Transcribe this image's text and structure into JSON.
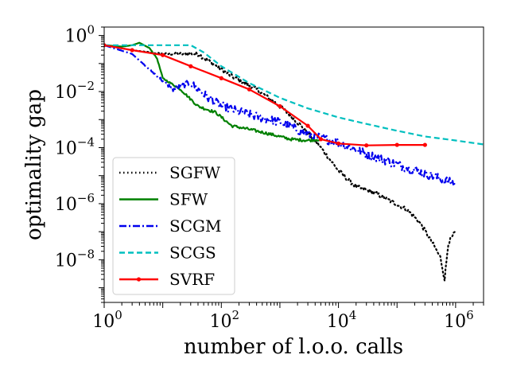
{
  "chart_data": {
    "type": "line",
    "title": "",
    "xlabel": "number of l.o.o. calls",
    "ylabel": "optimality gap",
    "xscale": "log",
    "yscale": "log",
    "xlim": [
      1,
      3000000
    ],
    "ylim": [
      3e-10,
      2
    ],
    "xticks": [
      {
        "value": 1,
        "base": "10",
        "exp": "0"
      },
      {
        "value": 100,
        "base": "10",
        "exp": "2"
      },
      {
        "value": 10000,
        "base": "10",
        "exp": "4"
      },
      {
        "value": 1000000,
        "base": "10",
        "exp": "6"
      }
    ],
    "yticks": [
      {
        "value": 1,
        "base": "10",
        "exp": "0"
      },
      {
        "value": 0.01,
        "base": "10",
        "exp": "−2"
      },
      {
        "value": 0.0001,
        "base": "10",
        "exp": "−4"
      },
      {
        "value": 1e-06,
        "base": "10",
        "exp": "−6"
      },
      {
        "value": 1e-08,
        "base": "10",
        "exp": "−8"
      }
    ],
    "legend_position": "lower-left",
    "series": [
      {
        "name": "SGFW",
        "color": "#000000",
        "style": "dotted",
        "noise": 0.08,
        "points": [
          [
            1,
            0.45
          ],
          [
            3,
            0.3
          ],
          [
            10,
            0.22
          ],
          [
            40,
            0.22
          ],
          [
            70,
            0.1
          ],
          [
            150,
            0.035
          ],
          [
            400,
            0.012
          ],
          [
            1000,
            0.003
          ],
          [
            2000,
            0.0008
          ],
          [
            4000,
            0.00018
          ],
          [
            6000,
            6e-05
          ],
          [
            10000,
            1.5e-05
          ],
          [
            20000,
            4e-06
          ],
          [
            40000,
            2.5e-06
          ],
          [
            80000,
            1.2e-06
          ],
          [
            150000,
            6e-07
          ],
          [
            250000,
            2e-07
          ],
          [
            400000,
            4e-08
          ],
          [
            550000,
            1.2e-08
          ],
          [
            650000,
            2e-09
          ],
          [
            750000,
            4e-08
          ],
          [
            1000000,
            1e-07
          ]
        ]
      },
      {
        "name": "SFW",
        "color": "#008000",
        "style": "solid",
        "noise": 0.05,
        "points": [
          [
            1,
            0.45
          ],
          [
            2,
            0.4
          ],
          [
            3,
            0.45
          ],
          [
            4,
            0.55
          ],
          [
            6,
            0.35
          ],
          [
            8,
            0.15
          ],
          [
            10,
            0.03
          ],
          [
            20,
            0.012
          ],
          [
            40,
            0.003
          ],
          [
            80,
            0.0018
          ],
          [
            150,
            0.0006
          ],
          [
            300,
            0.00045
          ],
          [
            700,
            0.0003
          ],
          [
            1500,
            0.0002
          ],
          [
            3000,
            0.00018
          ],
          [
            5000,
            0.0002
          ]
        ]
      },
      {
        "name": "SCGM",
        "color": "#0000ee",
        "style": "dashdot",
        "noise": 0.16,
        "points": [
          [
            1,
            0.45
          ],
          [
            3,
            0.22
          ],
          [
            6,
            0.06
          ],
          [
            15,
            0.012
          ],
          [
            30,
            0.02
          ],
          [
            60,
            0.006
          ],
          [
            100,
            0.003
          ],
          [
            300,
            0.0015
          ],
          [
            1000,
            0.0008
          ],
          [
            3000,
            0.0003
          ],
          [
            10000,
            0.00015
          ],
          [
            30000,
            6e-05
          ],
          [
            100000,
            2.5e-05
          ],
          [
            300000,
            1.2e-05
          ],
          [
            1000000,
            5e-06
          ]
        ]
      },
      {
        "name": "SCGS",
        "color": "#00bfbf",
        "style": "dashed",
        "noise": 0.0,
        "points": [
          [
            1,
            0.45
          ],
          [
            3,
            0.45
          ],
          [
            10,
            0.45
          ],
          [
            30,
            0.45
          ],
          [
            50,
            0.25
          ],
          [
            100,
            0.08
          ],
          [
            300,
            0.02
          ],
          [
            1000,
            0.006
          ],
          [
            3000,
            0.0025
          ],
          [
            10000,
            0.0012
          ],
          [
            30000,
            0.0007
          ],
          [
            100000,
            0.0004
          ],
          [
            300000,
            0.00025
          ],
          [
            1000000,
            0.00018
          ],
          [
            3000000,
            0.00013
          ]
        ]
      },
      {
        "name": "SVRF",
        "color": "#ff0000",
        "style": "solid-marker",
        "noise": 0.0,
        "points": [
          [
            1,
            0.45
          ],
          [
            3,
            0.3
          ],
          [
            10,
            0.2
          ],
          [
            30,
            0.08
          ],
          [
            100,
            0.03
          ],
          [
            300,
            0.012
          ],
          [
            1000,
            0.003
          ],
          [
            3000,
            0.0006
          ],
          [
            5000,
            0.0002
          ],
          [
            10000,
            0.00014
          ],
          [
            30000,
            0.00012
          ],
          [
            100000,
            0.000125
          ],
          [
            300000,
            0.000125
          ]
        ]
      }
    ]
  }
}
